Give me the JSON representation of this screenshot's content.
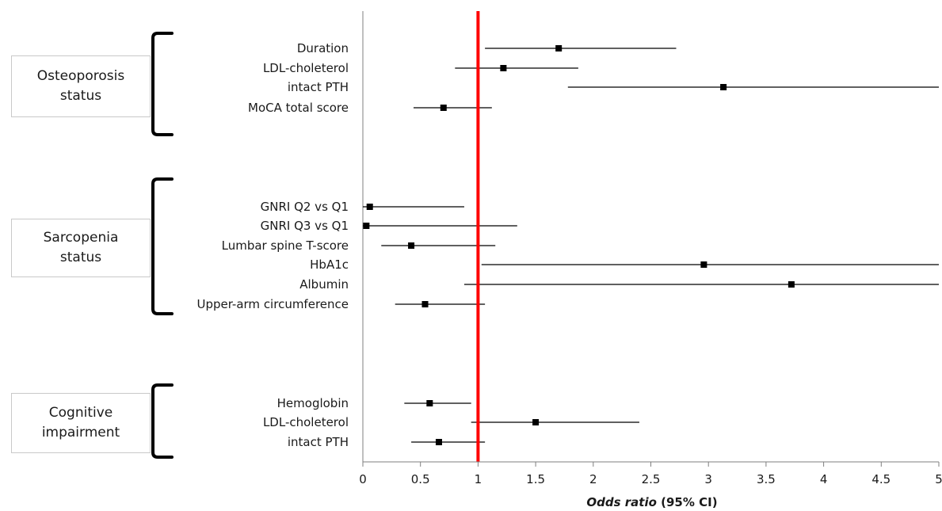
{
  "chart_data": {
    "type": "forest",
    "title": "",
    "xlabel_bold": "Odds ratio",
    "xlabel_rest": " (95% CI)",
    "xlim": [
      0,
      5
    ],
    "xticks": [
      "0",
      "0.5",
      "1",
      "1.5",
      "2",
      "2.5",
      "3",
      "3.5",
      "4",
      "4.5",
      "5"
    ],
    "reference_line": 1,
    "reference_color": "#ff0000",
    "marker_color": "#000000",
    "groups": [
      {
        "label": "Osteoporosis\nstatus",
        "rows": [
          {
            "label": "Duration",
            "or": 1.7,
            "lo": 1.06,
            "hi": 2.72
          },
          {
            "label": "LDL-choleterol",
            "or": 1.22,
            "lo": 0.8,
            "hi": 1.87
          },
          {
            "label": "intact PTH",
            "or": 3.13,
            "lo": 1.78,
            "hi": 5.0
          },
          {
            "label": "MoCA total score",
            "or": 0.7,
            "lo": 0.44,
            "hi": 1.12
          }
        ]
      },
      {
        "label": "Sarcopenia\nstatus",
        "rows": [
          {
            "label": "GNRI Q2 vs Q1",
            "or": 0.06,
            "lo": 0.0,
            "hi": 0.88
          },
          {
            "label": "GNRI Q3 vs Q1",
            "or": 0.03,
            "lo": 0.0,
            "hi": 1.34
          },
          {
            "label": "Lumbar spine T-score",
            "or": 0.42,
            "lo": 0.16,
            "hi": 1.15
          },
          {
            "label": "HbA1c",
            "or": 2.96,
            "lo": 1.03,
            "hi": 5.0
          },
          {
            "label": "Albumin",
            "or": 3.72,
            "lo": 0.88,
            "hi": 5.0
          },
          {
            "label": "Upper-arm circumference",
            "or": 0.54,
            "lo": 0.28,
            "hi": 1.06
          }
        ]
      },
      {
        "label": "Cognitive\nimpairment",
        "rows": [
          {
            "label": "Hemoglobin",
            "or": 0.58,
            "lo": 0.36,
            "hi": 0.94
          },
          {
            "label": "LDL-choleterol",
            "or": 1.5,
            "lo": 0.94,
            "hi": 2.4
          },
          {
            "label": "intact PTH",
            "or": 0.66,
            "lo": 0.42,
            "hi": 1.06
          }
        ]
      }
    ]
  }
}
